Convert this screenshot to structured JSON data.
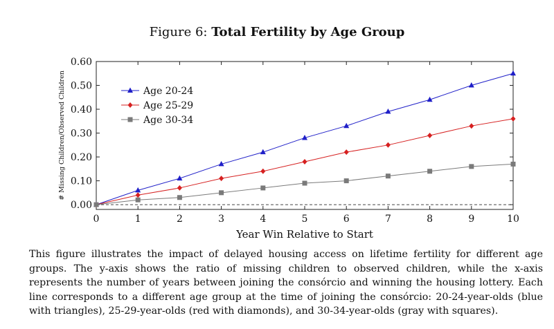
{
  "figure": {
    "label": "Figure 6:",
    "title": "Total Fertility by Age Group",
    "caption": "This figure illustrates the impact of delayed housing access on lifetime fertility for different age groups. The y-axis shows the ratio of missing children to observed children, while the x-axis represents the number of years between joining the consórcio and winning the housing lottery. Each line corresponds to a different age group at the time of joining the consórcio: 20-24-year-olds (blue with triangles), 25-29-year-olds (red with diamonds), and 30-34-year-olds (gray with squares)."
  },
  "chart_data": {
    "type": "line",
    "title": "Total Fertility by Age Group",
    "xlabel": "Year Win Relative to Start",
    "ylabel": "# Missing Children/Observed Children",
    "x": [
      0,
      1,
      2,
      3,
      4,
      5,
      6,
      7,
      8,
      9,
      10
    ],
    "xlim": [
      0,
      10
    ],
    "ylim": [
      -0.02,
      0.6
    ],
    "xticks": [
      0,
      1,
      2,
      3,
      4,
      5,
      6,
      7,
      8,
      9,
      10
    ],
    "yticks": [
      0.0,
      0.1,
      0.2,
      0.3,
      0.4,
      0.5,
      0.6
    ],
    "ytick_labels": [
      "0.00",
      "0.10",
      "0.20",
      "0.30",
      "0.40",
      "0.50",
      "0.60"
    ],
    "grid": false,
    "reference_line": {
      "y": 0,
      "style": "dashed"
    },
    "legend_position": "upper-left",
    "series": [
      {
        "name": "Age 20-24",
        "color": "#1f1fc8",
        "marker": "triangle",
        "values": [
          0.0,
          0.06,
          0.11,
          0.17,
          0.22,
          0.28,
          0.33,
          0.39,
          0.44,
          0.5,
          0.55
        ]
      },
      {
        "name": "Age 25-29",
        "color": "#d62020",
        "marker": "diamond",
        "values": [
          0.0,
          0.04,
          0.07,
          0.11,
          0.14,
          0.18,
          0.22,
          0.25,
          0.29,
          0.33,
          0.36
        ]
      },
      {
        "name": "Age 30-34",
        "color": "#7a7a7a",
        "marker": "square",
        "values": [
          0.0,
          0.02,
          0.03,
          0.05,
          0.07,
          0.09,
          0.1,
          0.12,
          0.14,
          0.16,
          0.17
        ]
      }
    ]
  }
}
